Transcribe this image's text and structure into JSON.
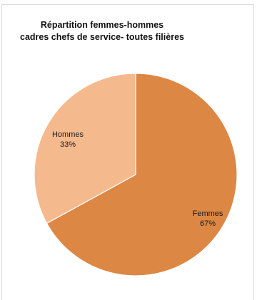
{
  "chart_data": {
    "type": "pie",
    "title": "Répartition femmes-hommes cadres chefs de service- toutes filières",
    "title_lines": [
      "Répartition femmes-hommes",
      "cadres chefs de service- toutes filières"
    ],
    "slices": [
      {
        "name": "Femmes",
        "value": 67,
        "label": "Femmes",
        "pct_label": "67%",
        "color": "#dc8744"
      },
      {
        "name": "Hommes",
        "value": 33,
        "label": "Hommes",
        "pct_label": "33%",
        "color": "#f5b98e"
      }
    ],
    "slice_border_color": "#ffffff",
    "legend": "none"
  }
}
